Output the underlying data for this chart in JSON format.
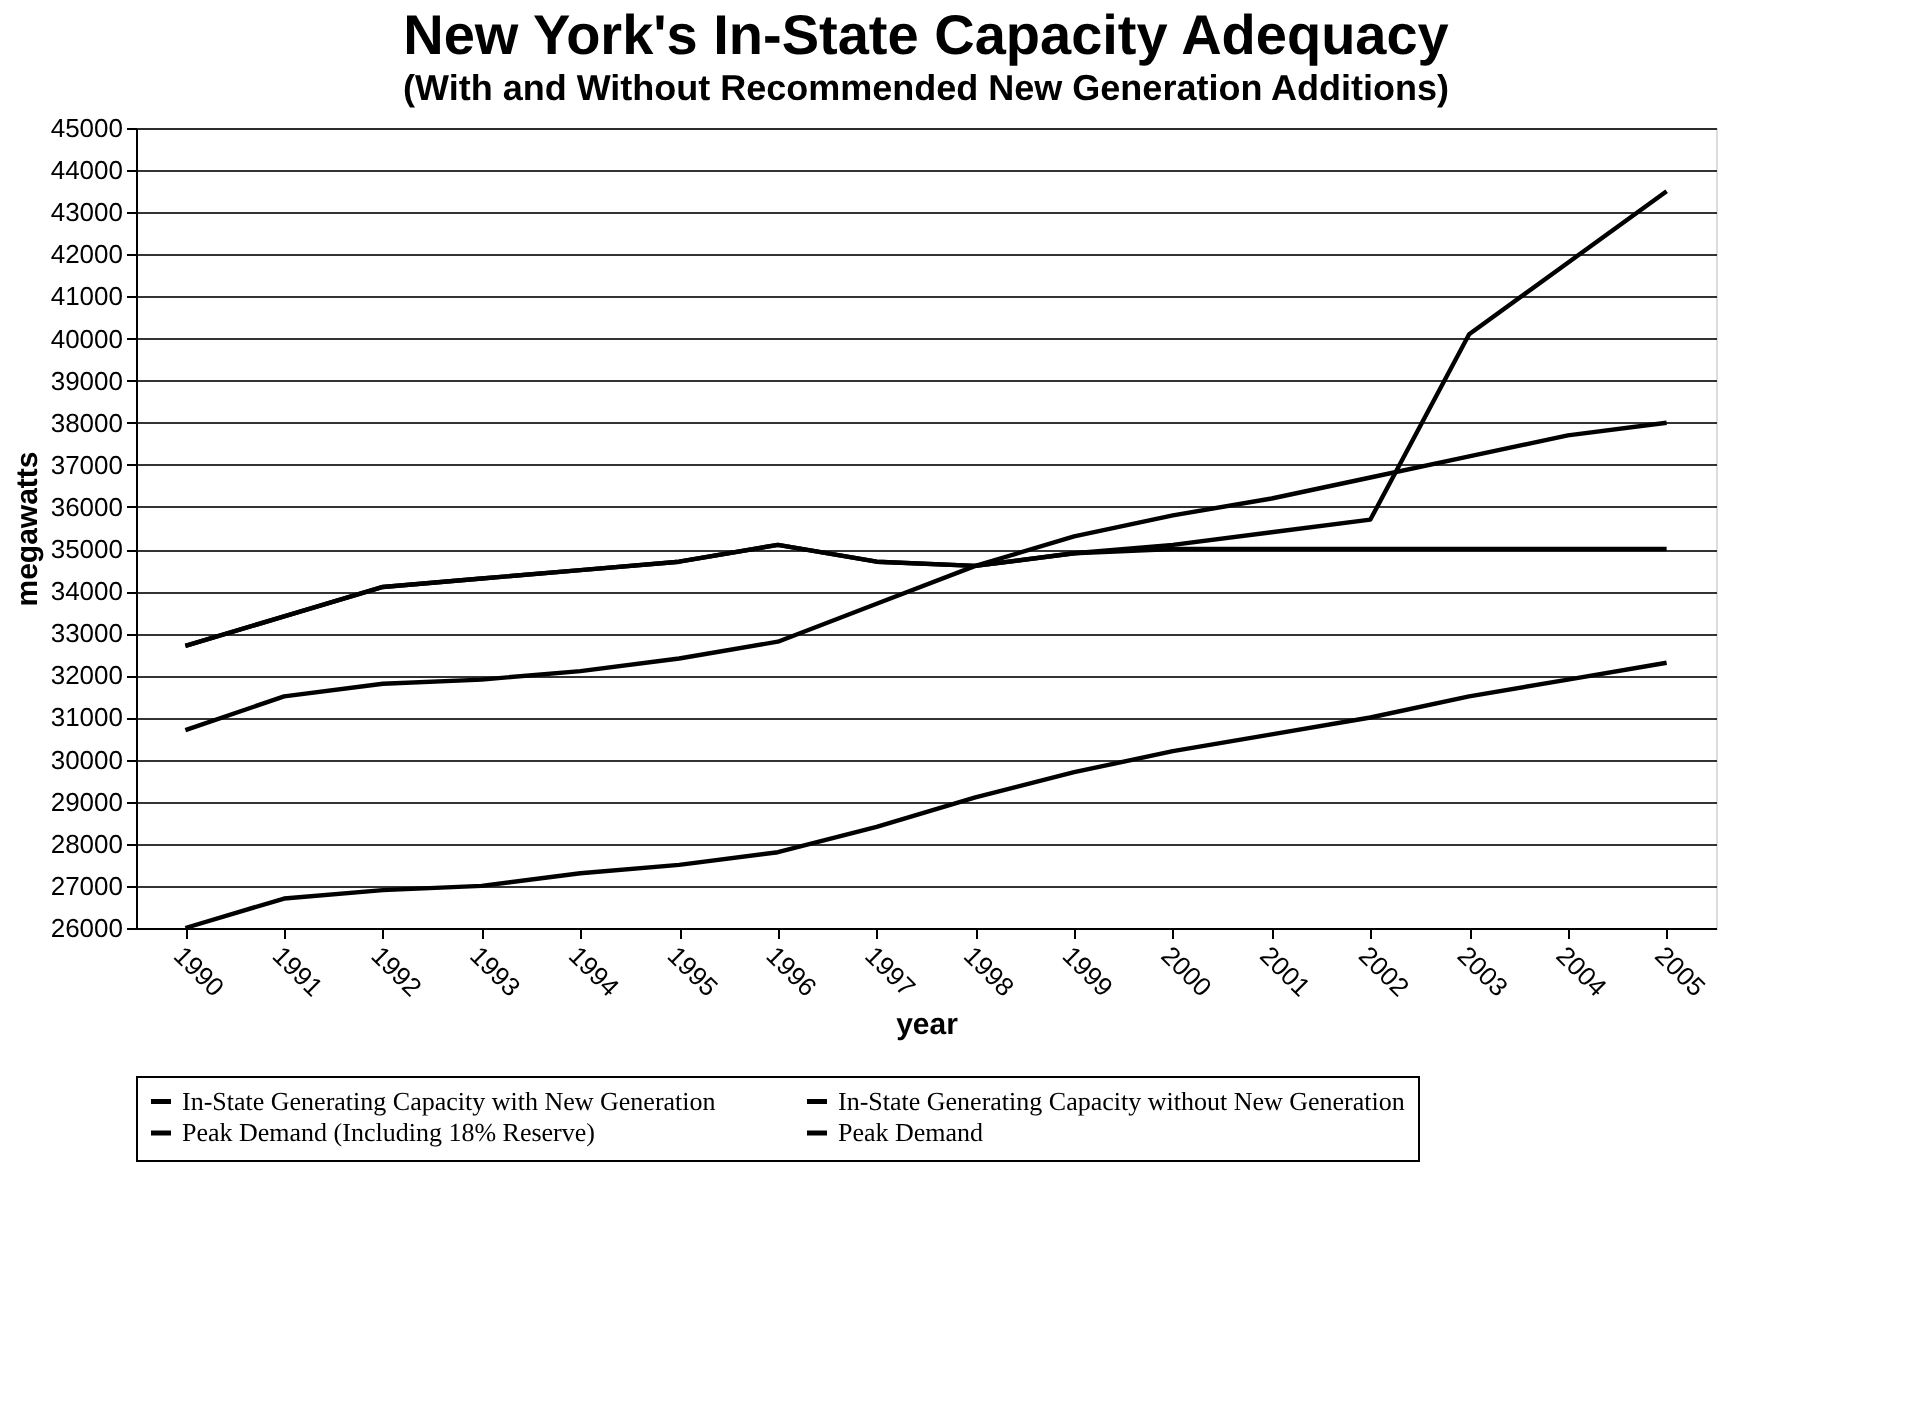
{
  "chart_data": {
    "type": "line",
    "title": "New York's In-State Capacity Adequacy",
    "subtitle": "(With and Without Recommended New Generation Additions)",
    "xlabel": "year",
    "ylabel": "megawatts",
    "categories": [
      "1990",
      "1991",
      "1992",
      "1993",
      "1994",
      "1995",
      "1996",
      "1997",
      "1998",
      "1999",
      "2000",
      "2001",
      "2002",
      "2003",
      "2004",
      "2005"
    ],
    "series": [
      {
        "name": "In-State Generating Capacity with New Generation",
        "color": "#000000",
        "values": [
          32700,
          33400,
          34100,
          34300,
          34500,
          34700,
          35100,
          34700,
          34600,
          34900,
          35100,
          35400,
          35700,
          40100,
          41800,
          43500
        ]
      },
      {
        "name": "In-State Generating Capacity without New Generation",
        "color": "#000000",
        "values": [
          32700,
          33400,
          34100,
          34300,
          34500,
          34700,
          35100,
          34700,
          34600,
          34900,
          35000,
          35000,
          35000,
          35000,
          35000,
          35000
        ]
      },
      {
        "name": "Peak Demand (Including 18% Reserve)",
        "color": "#000000",
        "values": [
          30700,
          31500,
          31800,
          31900,
          32100,
          32400,
          32800,
          33700,
          34600,
          35300,
          35800,
          36200,
          36700,
          37200,
          37700,
          38000
        ]
      },
      {
        "name": "Peak Demand",
        "color": "#000000",
        "values": [
          26000,
          26700,
          26900,
          27000,
          27300,
          27500,
          27800,
          28400,
          29100,
          29700,
          30200,
          30600,
          31000,
          31500,
          31900,
          32300
        ]
      }
    ],
    "ylim": [
      26000,
      45000
    ],
    "yticks": [
      26000,
      27000,
      28000,
      29000,
      30000,
      31000,
      32000,
      33000,
      34000,
      35000,
      36000,
      37000,
      38000,
      39000,
      40000,
      41000,
      42000,
      43000,
      44000,
      45000
    ],
    "grid": "y",
    "legend": "bottom",
    "marker": "none",
    "line_style": "solid"
  }
}
